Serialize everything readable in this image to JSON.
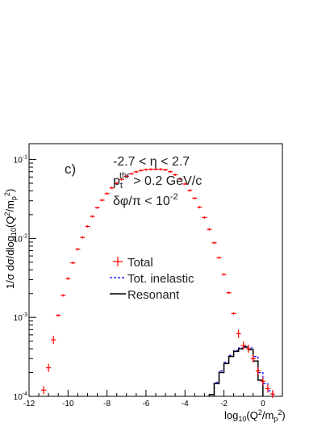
{
  "chart_data": {
    "type": "scatter",
    "xlabel_base": "log",
    "xlabel_sub": "10",
    "xlabel_arg": "(Q",
    "xlabel_sup": "2",
    "xlabel_mid": "/m",
    "xlabel_sub2": "p",
    "xlabel_sup2": "2",
    "xlabel_end": ")",
    "ylabel": "1/σ dσ/dlog",
    "ylabel_sub": "10",
    "ylabel_arg": "(Q",
    "ylabel_sup": "2",
    "ylabel_mid": "/m",
    "ylabel_sub2": "p",
    "ylabel_sup2": "2",
    "ylabel_end": ")",
    "xlim": [
      -12,
      1
    ],
    "ylim_log10": [
      -4,
      -0.8
    ],
    "log_y": true,
    "x_ticks": [
      -12,
      -10,
      -8,
      -6,
      -4,
      -2,
      0
    ],
    "x_tick_labels": [
      "-12",
      "-10",
      "-8",
      "-6",
      "-4",
      "-2",
      "0"
    ],
    "y_ticks": [
      {
        "base": "10",
        "exp": "-4",
        "pow": -4
      },
      {
        "base": "10",
        "exp": "-3",
        "pow": -3
      },
      {
        "base": "10",
        "exp": "-2",
        "pow": -2
      },
      {
        "base": "10",
        "exp": "-1",
        "pow": -1
      }
    ],
    "annotations": {
      "panel": "c)",
      "line1": "-2.7 < η < 2.7",
      "line2_base": "p",
      "line2_sub": "t",
      "line2_sup": "thr",
      "line2_rest": " > 0.2 GeV/c",
      "line3": "δφ/π < 10",
      "line3_sup": "-2"
    },
    "legend": [
      {
        "label": "Total",
        "style": "cross",
        "color": "#ff0000"
      },
      {
        "label": "Tot. inelastic",
        "style": "dashed",
        "color": "#0000ff"
      },
      {
        "label": "Resonant",
        "style": "solid",
        "color": "#000000"
      }
    ],
    "series": [
      {
        "name": "Total",
        "color": "#ff0000",
        "bin_width": 0.25,
        "points": [
          [
            -11.25,
            0.00012
          ],
          [
            -11.0,
            0.00023
          ],
          [
            -10.75,
            0.00052
          ],
          [
            -10.5,
            0.00106
          ],
          [
            -10.25,
            0.0019
          ],
          [
            -10.0,
            0.0031
          ],
          [
            -9.75,
            0.0049
          ],
          [
            -9.5,
            0.0073
          ],
          [
            -9.25,
            0.0103
          ],
          [
            -9.0,
            0.0142
          ],
          [
            -8.75,
            0.019
          ],
          [
            -8.5,
            0.0245
          ],
          [
            -8.25,
            0.0305
          ],
          [
            -8.0,
            0.037
          ],
          [
            -7.75,
            0.0437
          ],
          [
            -7.5,
            0.05
          ],
          [
            -7.25,
            0.056
          ],
          [
            -7.0,
            0.0612
          ],
          [
            -6.75,
            0.0659
          ],
          [
            -6.5,
            0.0697
          ],
          [
            -6.25,
            0.0725
          ],
          [
            -6.0,
            0.0742
          ],
          [
            -5.75,
            0.075
          ],
          [
            -5.5,
            0.0752
          ],
          [
            -5.25,
            0.0752
          ],
          [
            -5.0,
            0.0738
          ],
          [
            -4.75,
            0.07
          ],
          [
            -4.5,
            0.064
          ],
          [
            -4.25,
            0.0568
          ],
          [
            -4.0,
            0.0489
          ],
          [
            -3.75,
            0.0405
          ],
          [
            -3.5,
            0.0323
          ],
          [
            -3.25,
            0.0249
          ],
          [
            -3.0,
            0.0184
          ],
          [
            -2.75,
            0.013
          ],
          [
            -2.5,
            0.0088
          ],
          [
            -2.25,
            0.0057
          ],
          [
            -2.0,
            0.0035
          ],
          [
            -1.75,
            0.00205
          ],
          [
            -1.5,
            0.00112
          ],
          [
            -1.25,
            0.00062
          ],
          [
            -1.0,
            0.00044
          ],
          [
            -0.75,
            0.0004
          ],
          [
            -0.5,
            0.0003
          ],
          [
            -0.25,
            0.00021
          ],
          [
            0.0,
            0.000155
          ],
          [
            0.25,
            0.000125
          ],
          [
            0.5,
            0.000107
          ]
        ]
      },
      {
        "name": "Tot. inelastic",
        "color": "#0000ff",
        "style": "dashed",
        "edges": [
          -2.75,
          -2.5,
          -2.25,
          -2.0,
          -1.75,
          -1.5,
          -1.25,
          -1.0,
          -0.75,
          -0.5,
          -0.25,
          0.0,
          0.25,
          0.5
        ],
        "values": [
          0.000105,
          0.00015,
          0.00021,
          0.00027,
          0.00033,
          0.00038,
          0.00041,
          0.00043,
          0.00041,
          0.00032,
          0.0002,
          0.000145,
          0.000118
        ]
      },
      {
        "name": "Resonant",
        "color": "#000000",
        "style": "solid",
        "edges": [
          -2.75,
          -2.5,
          -2.25,
          -2.0,
          -1.75,
          -1.5,
          -1.25,
          -1.0,
          -0.75,
          -0.5,
          -0.25,
          0.0
        ],
        "values": [
          0.000105,
          0.000145,
          0.0002,
          0.00026,
          0.00032,
          0.00037,
          0.0004,
          0.00042,
          0.00039,
          0.00028,
          0.00016
        ]
      }
    ]
  }
}
